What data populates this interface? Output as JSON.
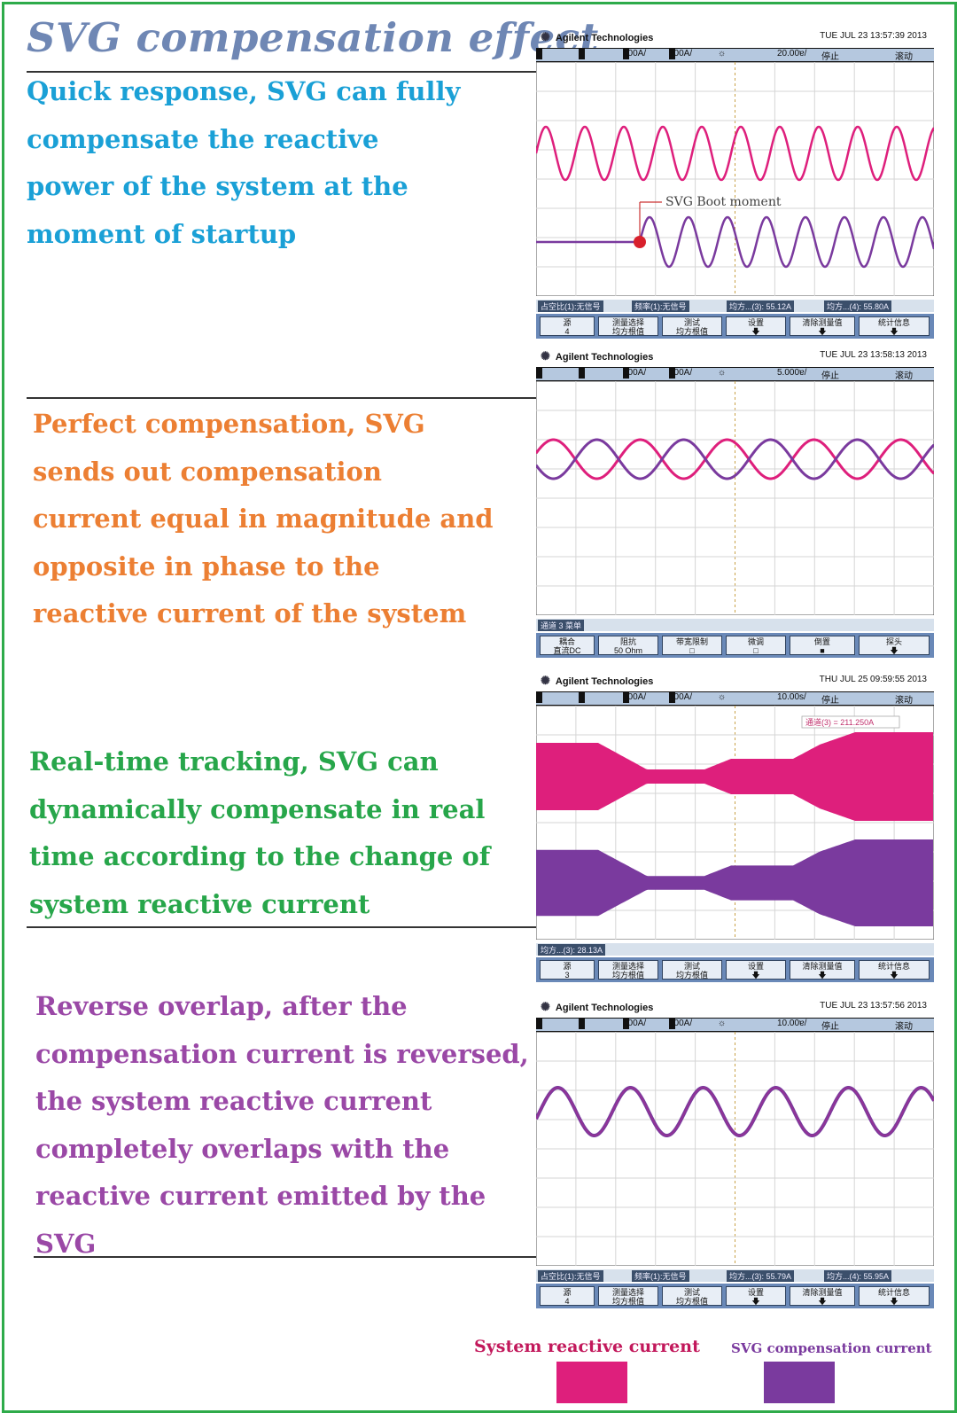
{
  "title": "SVG compensation effect",
  "sections": [
    {
      "lines": [
        "Quick response, SVG can fully",
        "compensate the reactive",
        "power of the system at the",
        "moment of startup"
      ]
    },
    {
      "lines": [
        "Perfect compensation, SVG",
        "sends out compensation",
        "current equal in magnitude and",
        "opposite in phase to the",
        "reactive current of the system"
      ]
    },
    {
      "lines": [
        "Real-time tracking, SVG can",
        "dynamically compensate in real",
        "time according to the change of",
        "system reactive current"
      ]
    },
    {
      "lines": [
        "Reverse overlap, after the",
        "compensation current is reversed,",
        "the system reactive current",
        "completely overlaps with the",
        "reactive current emitted by the",
        "SVG"
      ]
    }
  ],
  "colors": {
    "system_reactive": "#de1f7c",
    "svg_compensation": "#7a3a9e",
    "frame_border": "#2eab4a",
    "title": "#6f87b4"
  },
  "scopes": [
    {
      "brand": "Agilent Technologies",
      "timestamp": "TUE JUL 23 13:57:39 2013",
      "bar": {
        "ch1": "1",
        "ch2": "2",
        "ch3": "3",
        "ch3_scale": "100A/",
        "ch4": "4",
        "ch4_scale": "100A/",
        "timebase": "20.00ɐ/",
        "state": "停止",
        "mode": "滚动"
      },
      "annotation": "SVG Boot moment",
      "measurements": [
        "占空比(1):无信号",
        "频率(1):无信号",
        "均方...(3): 55.12A",
        "均方...(4): 55.80A"
      ],
      "softkeys": [
        "源\n4",
        "测量选择\n均方根值",
        "测试\n均方根值",
        "设置\n🡇",
        "清除测量值\n🡇",
        "统计信息\n🡇"
      ]
    },
    {
      "brand": "Agilent Technologies",
      "timestamp": "TUE JUL 23 13:58:13 2013",
      "bar": {
        "ch1": "1",
        "ch2": "2",
        "ch3": "3",
        "ch3_scale": "100A/",
        "ch4": "4",
        "ch4_scale": "100A/",
        "timebase": "5.000ɐ/",
        "state": "停止",
        "mode": "滚动"
      },
      "measurements": [
        "通道 3 菜单"
      ],
      "softkeys": [
        "耦合\n直流DC",
        "阻抗\n50 Ohm",
        "带宽限制\n□",
        "微调\n□",
        "倒置\n■",
        "探头\n🡇"
      ]
    },
    {
      "brand": "Agilent Technologies",
      "timestamp": "THU JUL 25 09:59:55 2013",
      "bar": {
        "ch1": "1",
        "ch2": "2",
        "ch3": "3",
        "ch3_scale": "100A/",
        "ch4": "4",
        "ch4_scale": "100A/",
        "timebase": "10.00s/",
        "state": "停止",
        "mode": "滚动"
      },
      "annotation": "通道(3) = 211.250A",
      "measurements": [
        "均方...(3): 28.13A"
      ],
      "softkeys": [
        "源\n3",
        "测量选择\n均方根值",
        "测试\n均方根值",
        "设置\n🡇",
        "清除测量值\n🡇",
        "统计信息\n🡇"
      ]
    },
    {
      "brand": "Agilent Technologies",
      "timestamp": "TUE JUL 23 13:57:56 2013",
      "bar": {
        "ch1": "1",
        "ch2": "2",
        "ch3": "3",
        "ch3_scale": "100A/",
        "ch4": "4",
        "ch4_scale": "100A/",
        "timebase": "10.00ɐ/",
        "state": "停止",
        "mode": "滚动"
      },
      "measurements": [
        "占空比(1):无信号",
        "频率(1):无信号",
        "均方...(3): 55.79A",
        "均方...(4): 55.95A"
      ],
      "softkeys": [
        "源\n4",
        "测量选择\n均方根值",
        "测试\n均方根值",
        "设置\n🡇",
        "清除测量值\n🡇",
        "统计信息\n🡇"
      ]
    }
  ],
  "legend": [
    {
      "label": "System reactive current",
      "color": "#de1f7c"
    },
    {
      "label": "SVG compensation current",
      "color": "#7a3a9e"
    }
  ]
}
